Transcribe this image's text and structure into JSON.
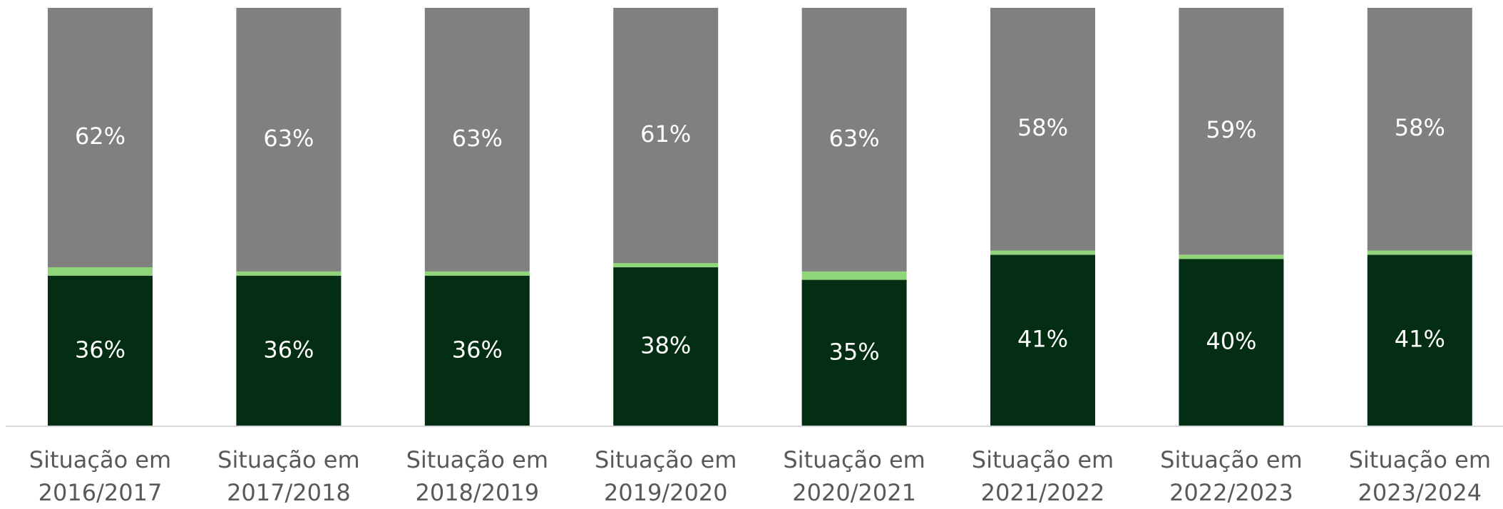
{
  "chart_data": {
    "type": "stacked_bar",
    "categories": [
      "Situação em 2016/2017",
      "Situação em 2017/2018",
      "Situação em 2018/2019",
      "Situação em 2019/2020",
      "Situação em 2020/2021",
      "Situação em 2021/2022",
      "Situação em 2022/2023",
      "Situação em 2023/2024"
    ],
    "series": [
      {
        "color": "#042e14",
        "values": [
          36,
          36,
          36,
          38,
          35,
          41,
          40,
          41
        ],
        "value_labels": [
          "36%",
          "36%",
          "36%",
          "38%",
          "35%",
          "41%",
          "40%",
          "41%"
        ]
      },
      {
        "color": "#8fd67a",
        "values": [
          2,
          1,
          1,
          1,
          2,
          1,
          1,
          1
        ]
      },
      {
        "color": "#808080",
        "values": [
          62,
          63,
          63,
          61,
          63,
          58,
          59,
          58
        ],
        "value_labels": [
          "62%",
          "63%",
          "63%",
          "61%",
          "63%",
          "58%",
          "59%",
          "58%"
        ]
      }
    ],
    "ylim": [
      0,
      100
    ]
  }
}
